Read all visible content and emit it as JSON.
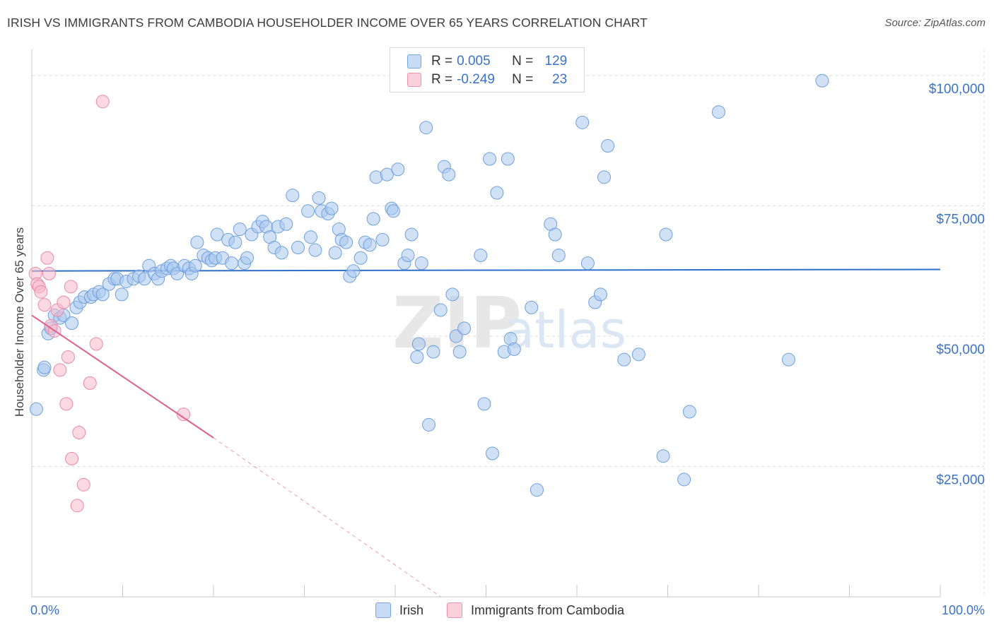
{
  "header": {
    "title": "IRISH VS IMMIGRANTS FROM CAMBODIA HOUSEHOLDER INCOME OVER 65 YEARS CORRELATION CHART",
    "source": "Source: ZipAtlas.com"
  },
  "watermark": {
    "zip": "ZIP",
    "atlas": "atlas"
  },
  "legend_top": [
    {
      "r_label": "R =",
      "r_value": "0.005",
      "n_label": "N =",
      "n_value": "129",
      "color": "#a9c8ee"
    },
    {
      "r_label": "R =",
      "r_value": "-0.249",
      "n_label": "N =",
      "n_value": "23",
      "color": "#f7b8cb"
    }
  ],
  "legend_bottom": [
    {
      "label": "Irish",
      "color": "#a9c8ee"
    },
    {
      "label": "Immigrants from Cambodia",
      "color": "#f7b8cb"
    }
  ],
  "chart_data": {
    "type": "scatter",
    "title": "IRISH VS IMMIGRANTS FROM CAMBODIA HOUSEHOLDER INCOME OVER 65 YEARS CORRELATION CHART",
    "xlabel": "",
    "ylabel": "Householder Income Over 65 years",
    "xlim": [
      0,
      100
    ],
    "ylim": [
      0,
      105000
    ],
    "x_tick_labels": [
      "0.0%",
      "100.0%"
    ],
    "y_ticks": [
      25000,
      50000,
      75000,
      100000
    ],
    "y_tick_labels": [
      "$25,000",
      "$50,000",
      "$75,000",
      "$100,000"
    ],
    "grid": true,
    "colors": {
      "irish_fill": "#a9c8ee",
      "irish_stroke": "#6f9fdc",
      "irish_line": "#2f6fc9",
      "cam_fill": "#f7b8cb",
      "cam_stroke": "#e98aa8",
      "cam_line": "#e0608c",
      "axis_label": "#3a72c8"
    },
    "series": [
      {
        "name": "Irish",
        "points": [
          [
            0.5,
            36000
          ],
          [
            1.3,
            43500
          ],
          [
            1.4,
            44000
          ],
          [
            1.8,
            50500
          ],
          [
            2.1,
            51500
          ],
          [
            2.5,
            54000
          ],
          [
            3.1,
            53500
          ],
          [
            3.5,
            54000
          ],
          [
            4.4,
            52500
          ],
          [
            4.9,
            55500
          ],
          [
            5.3,
            56500
          ],
          [
            5.8,
            57500
          ],
          [
            6.5,
            57500
          ],
          [
            6.8,
            58000
          ],
          [
            7.4,
            58500
          ],
          [
            7.8,
            58000
          ],
          [
            8.5,
            60000
          ],
          [
            9.1,
            61000
          ],
          [
            9.4,
            61000
          ],
          [
            9.9,
            58000
          ],
          [
            10.4,
            60500
          ],
          [
            11.2,
            61000
          ],
          [
            11.8,
            61500
          ],
          [
            12.4,
            61000
          ],
          [
            12.9,
            63500
          ],
          [
            13.5,
            62000
          ],
          [
            13.9,
            61000
          ],
          [
            14.3,
            62500
          ],
          [
            14.9,
            63000
          ],
          [
            15.3,
            63500
          ],
          [
            15.6,
            63000
          ],
          [
            16.0,
            62000
          ],
          [
            16.8,
            63500
          ],
          [
            17.3,
            63000
          ],
          [
            17.6,
            62000
          ],
          [
            18.0,
            63500
          ],
          [
            18.2,
            68000
          ],
          [
            18.9,
            65500
          ],
          [
            19.4,
            65000
          ],
          [
            19.8,
            64500
          ],
          [
            20.2,
            65000
          ],
          [
            20.4,
            69500
          ],
          [
            21.0,
            65000
          ],
          [
            21.6,
            68500
          ],
          [
            22.0,
            64000
          ],
          [
            22.4,
            68000
          ],
          [
            22.9,
            70500
          ],
          [
            23.4,
            64000
          ],
          [
            23.7,
            65000
          ],
          [
            24.2,
            69500
          ],
          [
            24.9,
            71000
          ],
          [
            25.4,
            72000
          ],
          [
            25.8,
            71000
          ],
          [
            26.2,
            69000
          ],
          [
            26.7,
            67000
          ],
          [
            27.1,
            71000
          ],
          [
            27.5,
            66000
          ],
          [
            28.0,
            71500
          ],
          [
            28.7,
            77000
          ],
          [
            29.3,
            67000
          ],
          [
            30.4,
            74000
          ],
          [
            30.7,
            69000
          ],
          [
            31.2,
            66500
          ],
          [
            31.6,
            76500
          ],
          [
            31.9,
            74000
          ],
          [
            32.6,
            73500
          ],
          [
            33.0,
            74500
          ],
          [
            33.4,
            66000
          ],
          [
            33.8,
            70500
          ],
          [
            34.1,
            68500
          ],
          [
            34.6,
            68000
          ],
          [
            35.0,
            61500
          ],
          [
            35.4,
            62500
          ],
          [
            36.2,
            65000
          ],
          [
            36.7,
            68000
          ],
          [
            37.2,
            67500
          ],
          [
            37.6,
            72500
          ],
          [
            37.9,
            80500
          ],
          [
            38.6,
            68500
          ],
          [
            39.1,
            81000
          ],
          [
            39.6,
            74500
          ],
          [
            39.8,
            74000
          ],
          [
            40.3,
            82000
          ],
          [
            41.0,
            64000
          ],
          [
            41.4,
            65500
          ],
          [
            41.8,
            69500
          ],
          [
            42.4,
            46000
          ],
          [
            42.6,
            48500
          ],
          [
            42.9,
            64000
          ],
          [
            43.4,
            90000
          ],
          [
            43.7,
            33000
          ],
          [
            44.2,
            47000
          ],
          [
            45.0,
            55000
          ],
          [
            45.4,
            82500
          ],
          [
            45.9,
            81000
          ],
          [
            46.3,
            58000
          ],
          [
            46.7,
            50000
          ],
          [
            47.1,
            47000
          ],
          [
            47.6,
            51500
          ],
          [
            49.4,
            65500
          ],
          [
            49.8,
            37000
          ],
          [
            50.4,
            84000
          ],
          [
            50.7,
            27500
          ],
          [
            51.2,
            77500
          ],
          [
            52.0,
            47000
          ],
          [
            52.4,
            84000
          ],
          [
            52.7,
            49500
          ],
          [
            53.1,
            47500
          ],
          [
            55.0,
            55500
          ],
          [
            55.6,
            20500
          ],
          [
            57.1,
            71500
          ],
          [
            57.6,
            69500
          ],
          [
            58.0,
            65500
          ],
          [
            60.6,
            91000
          ],
          [
            61.2,
            64000
          ],
          [
            62.0,
            56500
          ],
          [
            62.6,
            58000
          ],
          [
            63.0,
            80500
          ],
          [
            63.4,
            86500
          ],
          [
            65.2,
            45500
          ],
          [
            66.8,
            46500
          ],
          [
            69.5,
            27000
          ],
          [
            69.8,
            69500
          ],
          [
            71.8,
            22500
          ],
          [
            72.4,
            35500
          ],
          [
            75.6,
            93000
          ],
          [
            83.3,
            45500
          ],
          [
            87.0,
            99000
          ]
        ]
      },
      {
        "name": "Immigrants from Cambodia",
        "points": [
          [
            0.4,
            62000
          ],
          [
            0.6,
            60000
          ],
          [
            0.8,
            59500
          ],
          [
            1.0,
            58500
          ],
          [
            1.4,
            56000
          ],
          [
            1.7,
            65000
          ],
          [
            1.9,
            62000
          ],
          [
            2.1,
            52000
          ],
          [
            2.5,
            51000
          ],
          [
            2.8,
            55000
          ],
          [
            3.1,
            43500
          ],
          [
            3.5,
            56500
          ],
          [
            3.8,
            37000
          ],
          [
            4.0,
            46000
          ],
          [
            4.3,
            59500
          ],
          [
            4.4,
            26500
          ],
          [
            5.0,
            17500
          ],
          [
            5.2,
            31500
          ],
          [
            5.7,
            21500
          ],
          [
            6.4,
            41000
          ],
          [
            7.1,
            48500
          ],
          [
            7.8,
            95000
          ],
          [
            16.7,
            35000
          ]
        ]
      }
    ],
    "trendlines": [
      {
        "series": "Irish",
        "x": [
          0,
          100
        ],
        "y": [
          62500,
          62800
        ]
      },
      {
        "series": "Immigrants from Cambodia",
        "x": [
          0,
          20
        ],
        "y": [
          54000,
          30500
        ],
        "dashed_extension_to": [
          45,
          0
        ]
      }
    ]
  }
}
